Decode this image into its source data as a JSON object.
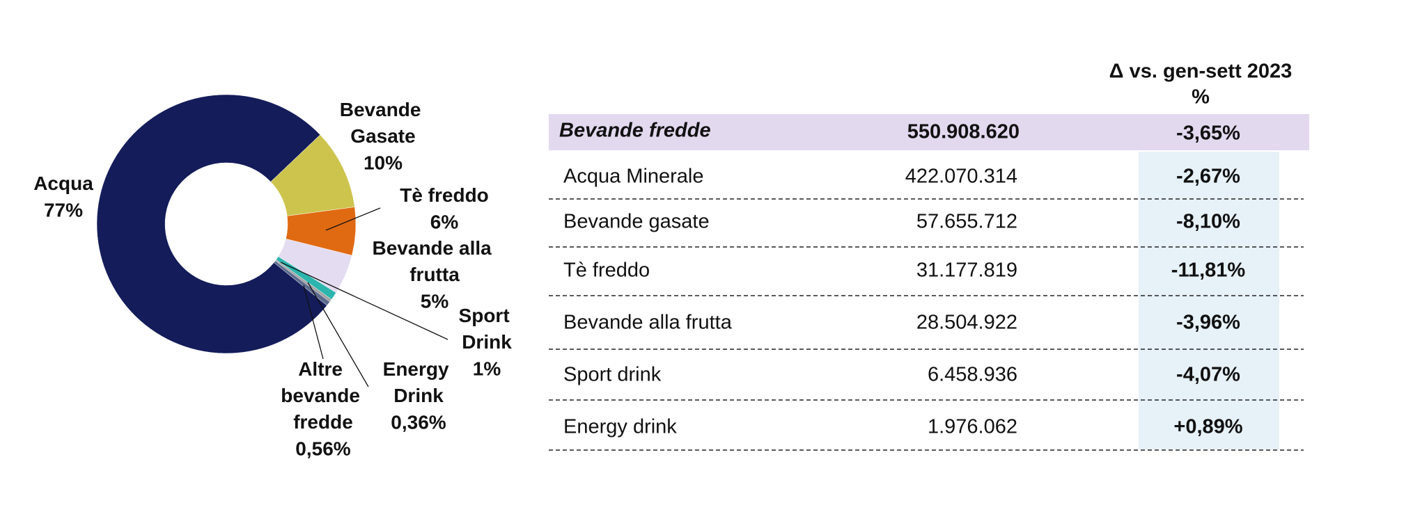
{
  "chart_data": {
    "type": "pie",
    "categories": [
      "Acqua",
      "Bevande Gasate",
      "Tè freddo",
      "Bevande alla frutta",
      "Sport Drink",
      "Energy Drink",
      "Altre bevande fredde"
    ],
    "values": [
      77,
      10,
      6,
      5,
      1,
      0.36,
      0.56
    ],
    "value_labels": [
      "77%",
      "10%",
      "6%",
      "5%",
      "1%",
      "0,36%",
      "0,56%"
    ],
    "colors": [
      "#141c5a",
      "#cdc44e",
      "#e06a12",
      "#e4dcf0",
      "#2bb5ad",
      "#a3a3a3",
      "#5c6a8c"
    ]
  },
  "table": {
    "header": [
      "Δ vs. gen-sett 2023",
      "%"
    ],
    "total": [
      "Bevande fredde",
      "550.908.620",
      "-3,65%"
    ],
    "rows": [
      [
        "Acqua Minerale",
        "422.070.314",
        "-2,67%"
      ],
      [
        "Bevande gasate",
        "57.655.712",
        "-8,10%"
      ],
      [
        "Tè freddo",
        "31.177.819",
        "-11,81%"
      ],
      [
        "Bevande alla frutta",
        "28.504.922",
        "-3,96%"
      ],
      [
        "Sport drink",
        "6.458.936",
        "-4,07%"
      ],
      [
        "Energy drink",
        "1.976.062",
        "+0,89%"
      ]
    ]
  }
}
